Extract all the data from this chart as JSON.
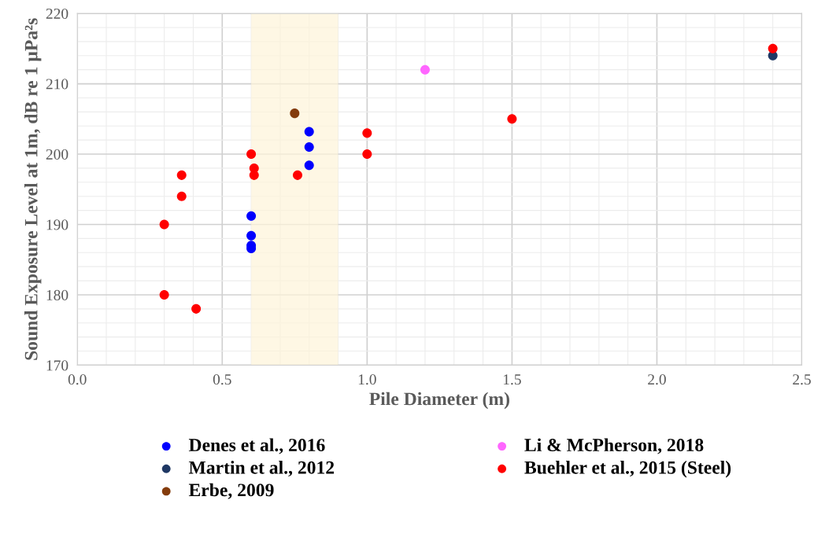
{
  "chart_data": {
    "type": "scatter",
    "xlabel": "Pile Diameter (m)",
    "ylabel": "Sound Exposure Level at 1m, dB re 1 µPa²s",
    "xlim": [
      0,
      2.5
    ],
    "ylim": [
      170,
      220
    ],
    "xticks": [
      {
        "value": 0,
        "label": "0.0"
      },
      {
        "value": 0.5,
        "label": "0.5"
      },
      {
        "value": 1,
        "label": "1.0"
      },
      {
        "value": 1.5,
        "label": "1.5"
      },
      {
        "value": 2,
        "label": "2.0"
      },
      {
        "value": 2.5,
        "label": "2.5"
      }
    ],
    "yticks": [
      170,
      180,
      190,
      200,
      210,
      220
    ],
    "grid": true,
    "legend": "bottom",
    "marker": "circle",
    "bands": [
      {
        "axis": "x",
        "from": 0.6,
        "to": 0.9,
        "label": null,
        "color": "#fdf3d8"
      }
    ],
    "series": [
      {
        "name": "Denes et al., 2016",
        "color": "#0000ff",
        "x": [
          0.6,
          0.6,
          0.6,
          0.6,
          0.8,
          0.8,
          0.8
        ],
        "values": [
          191.2,
          188.4,
          187,
          186.6,
          203.2,
          201,
          198.4
        ]
      },
      {
        "name": "Martin et al., 2012",
        "color": "#1f3864",
        "x": [
          2.4
        ],
        "values": [
          214
        ]
      },
      {
        "name": "Erbe, 2009",
        "color": "#843c0c",
        "x": [
          0.75
        ],
        "values": [
          205.8
        ]
      },
      {
        "name": "Li & McPherson, 2018",
        "color": "#ff66ff",
        "x": [
          1.2
        ],
        "values": [
          212
        ]
      },
      {
        "name": "Buehler et al., 2015 (Steel)",
        "color": "#ff0000",
        "x": [
          0.3,
          0.3,
          0.36,
          0.36,
          0.41,
          0.6,
          0.61,
          0.61,
          0.76,
          1.0,
          1.0,
          1.5,
          2.4
        ],
        "values": [
          190,
          180,
          197,
          194,
          178,
          200,
          198,
          197,
          197,
          203,
          200,
          205,
          215
        ]
      }
    ]
  }
}
